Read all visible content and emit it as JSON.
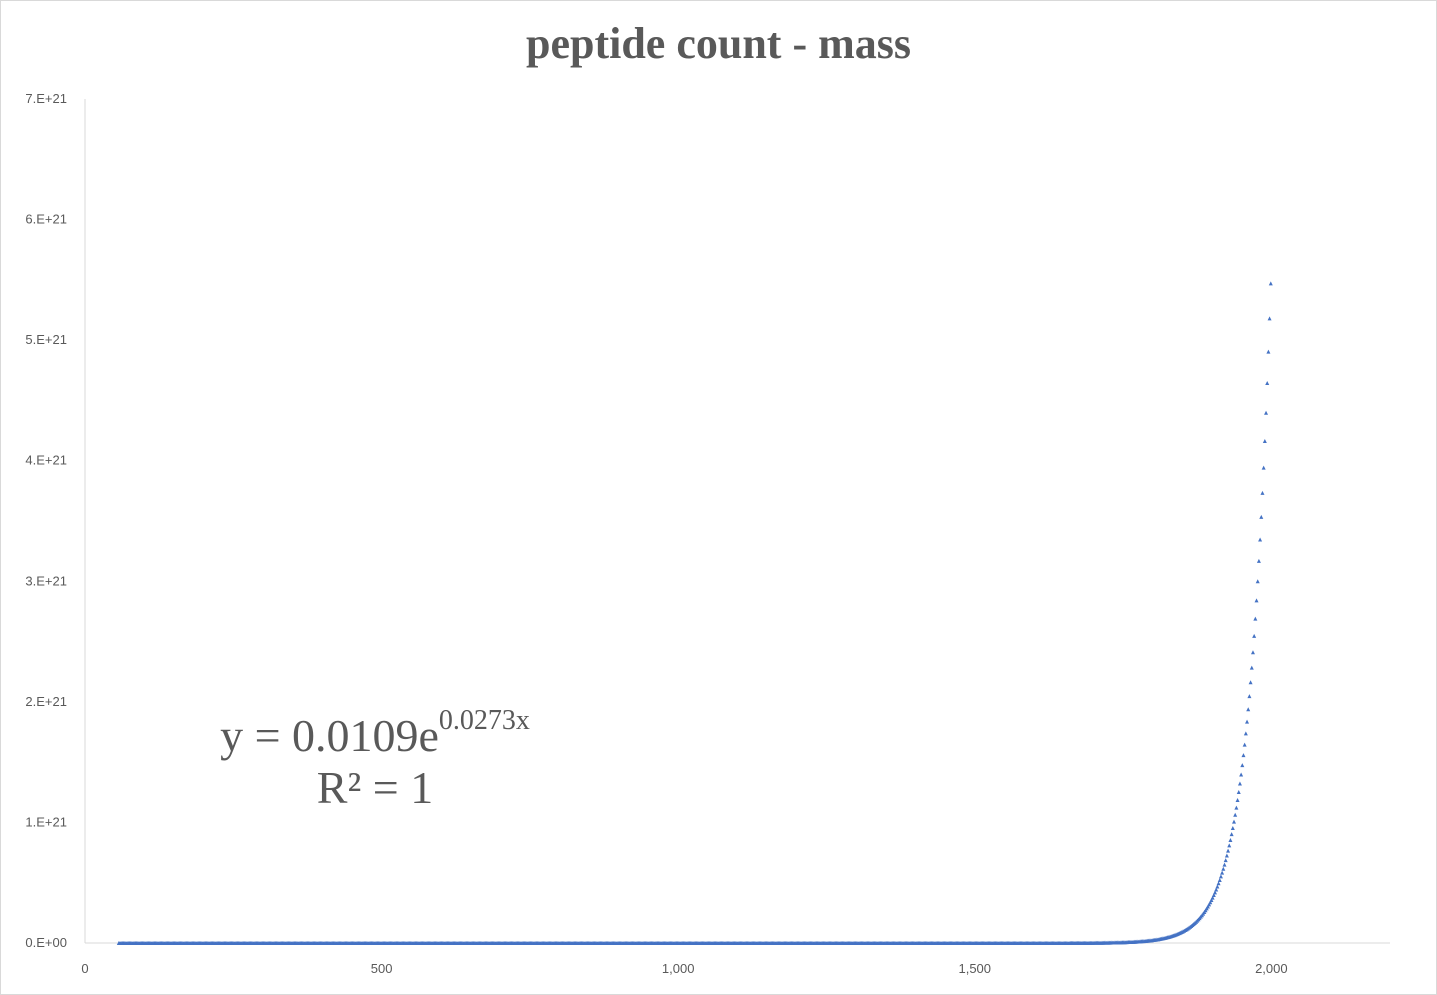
{
  "chart_data": {
    "type": "scatter",
    "title": "peptide count - mass",
    "xlabel": "",
    "ylabel": "",
    "xlim": [
      0,
      2200
    ],
    "ylim": [
      0,
      7e+21
    ],
    "x_ticks": [
      {
        "value": 0,
        "label": "0"
      },
      {
        "value": 500,
        "label": "500"
      },
      {
        "value": 1000,
        "label": "1,000"
      },
      {
        "value": 1500,
        "label": "1,500"
      },
      {
        "value": 2000,
        "label": "2,000"
      }
    ],
    "y_ticks": [
      {
        "value": 0,
        "label": "0.E+00"
      },
      {
        "value": 1e+21,
        "label": "1.E+21"
      },
      {
        "value": 2e+21,
        "label": "2.E+21"
      },
      {
        "value": 3e+21,
        "label": "3.E+21"
      },
      {
        "value": 4e+21,
        "label": "4.E+21"
      },
      {
        "value": 5e+21,
        "label": "5.E+21"
      },
      {
        "value": 6e+21,
        "label": "6.E+21"
      },
      {
        "value": 7e+21,
        "label": "7.E+21"
      }
    ],
    "grid": false,
    "series": [
      {
        "color": "#4472c4",
        "marker": "triangle",
        "x_range": [
          57,
          2000
        ],
        "x_step": 2,
        "model": {
          "type": "exponential",
          "a": 0.0109,
          "b": 0.0273
        }
      }
    ],
    "trendline": {
      "equation_prefix": "y = 0.0109e",
      "equation_exponent": "0.0273x",
      "r_squared": "R² = 1"
    }
  }
}
